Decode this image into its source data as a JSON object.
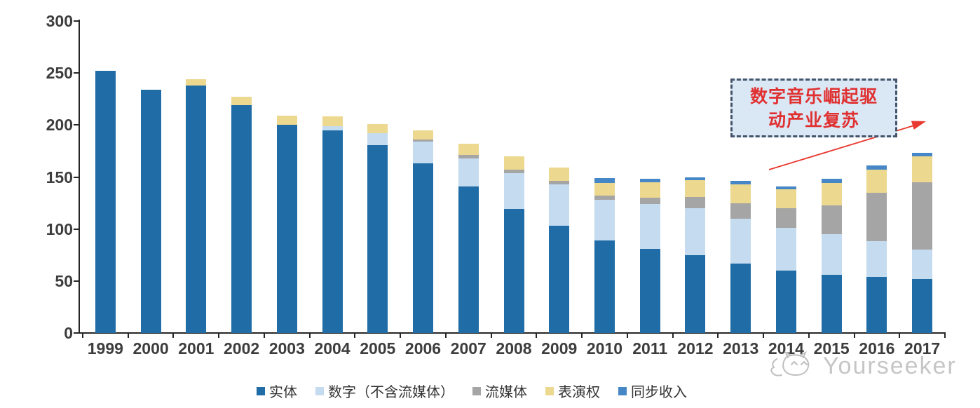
{
  "chart_data": {
    "type": "bar",
    "stacked": true,
    "title": "",
    "xlabel": "",
    "ylabel": "",
    "ylim": [
      0,
      300
    ],
    "y_ticks": [
      0,
      50,
      100,
      150,
      200,
      250,
      300
    ],
    "grid": false,
    "legend_position": "bottom",
    "categories": [
      "1999",
      "2000",
      "2001",
      "2002",
      "2003",
      "2004",
      "2005",
      "2006",
      "2007",
      "2008",
      "2009",
      "2010",
      "2011",
      "2012",
      "2013",
      "2014",
      "2015",
      "2016",
      "2017"
    ],
    "series": [
      {
        "name": "实体",
        "color": "#1F6CA6",
        "values": [
          252,
          234,
          238,
          219,
          200,
          195,
          181,
          163,
          141,
          119,
          103,
          89,
          81,
          75,
          67,
          60,
          56,
          54,
          52
        ]
      },
      {
        "name": "数字（不含流媒体）",
        "color": "#C5DBEF",
        "values": [
          0,
          0,
          0,
          0,
          0,
          4,
          11,
          21,
          27,
          35,
          40,
          39,
          43,
          45,
          43,
          41,
          39,
          34,
          28
        ]
      },
      {
        "name": "流媒体",
        "color": "#A5A5A5",
        "values": [
          0,
          0,
          0,
          0,
          0,
          0,
          0,
          2,
          3,
          3,
          3,
          4,
          6,
          11,
          15,
          19,
          28,
          47,
          65
        ]
      },
      {
        "name": "表演权",
        "color": "#EDD88F",
        "values": [
          0,
          0,
          6,
          8,
          9,
          9,
          9,
          9,
          11,
          13,
          13,
          12,
          15,
          16,
          18,
          18,
          21,
          22,
          25
        ]
      },
      {
        "name": "同步收入",
        "color": "#4688C7",
        "values": [
          0,
          0,
          0,
          0,
          0,
          0,
          0,
          0,
          0,
          0,
          0,
          5,
          3,
          3,
          3,
          3,
          4,
          4,
          3
        ]
      }
    ]
  },
  "annotation": {
    "line1": "数字音乐崛起驱",
    "line2": "动产业复苏",
    "text": "数字音乐崛起驱动产业复苏",
    "box_fill": "#DAE8F6",
    "border_color": "#44546A",
    "text_color": "#E03131",
    "arrow_color": "#E8392F"
  },
  "watermark": {
    "text": "Yourseeker"
  },
  "colors": {
    "axis": "#262626",
    "tick_label": "#3d3d3d",
    "background": "#ffffff"
  }
}
